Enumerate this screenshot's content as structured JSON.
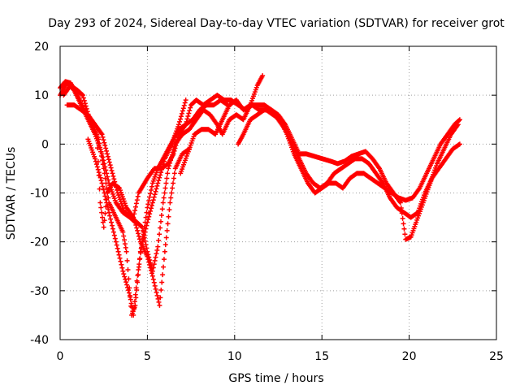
{
  "chart_data": {
    "type": "scatter",
    "title": "Day 293 of 2024, Sidereal Day-to-day VTEC variation (SDTVAR) for receiver grot",
    "xlabel": "GPS time / hours",
    "ylabel": "SDTVAR / TECUs",
    "xlim": [
      0,
      25
    ],
    "ylim": [
      -40,
      20
    ],
    "xticks": [
      0,
      5,
      10,
      15,
      20,
      25
    ],
    "yticks": [
      -40,
      -30,
      -20,
      -10,
      0,
      10,
      20
    ],
    "xtick_labels": [
      "0",
      "5",
      "10",
      "15",
      "20",
      "25"
    ],
    "ytick_labels": [
      "-40",
      "-30",
      "-20",
      "-10",
      "0",
      "10",
      "20"
    ],
    "grid": true,
    "marker": "plus",
    "color": "#ff0000",
    "series": [
      {
        "values": [
          [
            0.0,
            11.5
          ],
          [
            0.3,
            12.8
          ],
          [
            0.6,
            12.5
          ],
          [
            1.0,
            10
          ],
          [
            1.4,
            7
          ],
          [
            1.8,
            4
          ],
          [
            2.2,
            1
          ],
          [
            2.5,
            -5
          ],
          [
            2.8,
            -12
          ],
          [
            3.2,
            -15
          ],
          [
            3.6,
            -18
          ],
          [
            3.8,
            -22
          ],
          [
            4.1,
            -35
          ],
          [
            4.3,
            -33
          ],
          [
            4.6,
            -22
          ],
          [
            5.0,
            -16
          ],
          [
            5.3,
            -12
          ],
          [
            5.6,
            -8
          ],
          [
            6.0,
            -3
          ],
          [
            6.4,
            0
          ],
          [
            6.8,
            4
          ],
          [
            7.2,
            9
          ]
        ]
      },
      {
        "values": [
          [
            0.0,
            10
          ],
          [
            0.4,
            12.5
          ],
          [
            0.8,
            11
          ],
          [
            1.2,
            8
          ],
          [
            1.6,
            5
          ],
          [
            2.0,
            2
          ],
          [
            2.4,
            -2
          ],
          [
            2.8,
            -8
          ],
          [
            3.2,
            -12
          ],
          [
            3.6,
            -14
          ],
          [
            4.0,
            -15
          ],
          [
            4.3,
            -16
          ],
          [
            4.6,
            -20
          ],
          [
            5.0,
            -23
          ],
          [
            5.3,
            -27
          ],
          [
            5.7,
            -33
          ],
          [
            6.0,
            -22
          ],
          [
            6.3,
            -12
          ],
          [
            6.6,
            -5
          ],
          [
            7.0,
            -2
          ],
          [
            7.4,
            -1
          ]
        ]
      },
      {
        "values": [
          [
            0.2,
            10
          ],
          [
            0.6,
            12
          ],
          [
            1.0,
            11
          ],
          [
            1.3,
            10
          ],
          [
            1.7,
            5
          ],
          [
            2.1,
            2
          ],
          [
            2.3,
            -12
          ],
          [
            2.5,
            -17
          ],
          [
            2.7,
            -10
          ],
          [
            3.0,
            -8
          ],
          [
            3.4,
            -9
          ],
          [
            3.8,
            -13
          ],
          [
            4.2,
            -15
          ],
          [
            4.5,
            -10
          ],
          [
            5.0,
            -7
          ],
          [
            5.4,
            -5
          ],
          [
            5.8,
            -5
          ],
          [
            6.2,
            -4
          ],
          [
            6.5,
            -2
          ],
          [
            6.8,
            2
          ],
          [
            7.2,
            4
          ],
          [
            7.5,
            8
          ],
          [
            7.8,
            9
          ],
          [
            8.2,
            8
          ],
          [
            8.6,
            9
          ],
          [
            9.0,
            10
          ],
          [
            9.4,
            9
          ],
          [
            9.8,
            9
          ],
          [
            10.2,
            8
          ],
          [
            10.6,
            7
          ],
          [
            11.0,
            8
          ],
          [
            11.4,
            7
          ],
          [
            11.8,
            7
          ],
          [
            12.2,
            6
          ],
          [
            12.6,
            5
          ],
          [
            13.0,
            2
          ],
          [
            13.4,
            -2
          ],
          [
            13.8,
            -5
          ],
          [
            14.2,
            -8
          ],
          [
            14.6,
            -10
          ],
          [
            15.0,
            -9
          ],
          [
            15.4,
            -8
          ],
          [
            15.8,
            -8
          ],
          [
            16.2,
            -9
          ],
          [
            16.6,
            -7
          ],
          [
            17.0,
            -6
          ],
          [
            17.4,
            -6
          ],
          [
            17.8,
            -7
          ],
          [
            18.2,
            -8
          ],
          [
            18.6,
            -9
          ],
          [
            19.0,
            -10
          ],
          [
            19.4,
            -11
          ],
          [
            19.8,
            -11.5
          ],
          [
            20.2,
            -11
          ],
          [
            20.6,
            -9
          ],
          [
            21.0,
            -6
          ],
          [
            21.4,
            -3
          ],
          [
            21.8,
            0
          ],
          [
            22.2,
            2
          ],
          [
            22.6,
            4
          ],
          [
            22.9,
            5
          ]
        ]
      },
      {
        "values": [
          [
            0.4,
            8
          ],
          [
            0.8,
            8
          ],
          [
            1.2,
            7
          ],
          [
            1.6,
            6
          ],
          [
            2.0,
            4
          ],
          [
            2.4,
            2
          ],
          [
            2.7,
            -2
          ],
          [
            3.0,
            -6
          ],
          [
            3.3,
            -10
          ],
          [
            3.7,
            -14
          ],
          [
            4.1,
            -15
          ],
          [
            4.4,
            -16
          ],
          [
            4.7,
            -17
          ],
          [
            5.0,
            -22
          ],
          [
            5.3,
            -26
          ],
          [
            5.6,
            -21
          ],
          [
            5.9,
            -12
          ],
          [
            6.2,
            -5
          ],
          [
            6.6,
            0
          ],
          [
            7.0,
            2
          ],
          [
            7.4,
            3
          ],
          [
            7.8,
            5
          ],
          [
            8.2,
            7
          ],
          [
            8.6,
            6
          ],
          [
            9.0,
            4
          ],
          [
            9.3,
            2
          ],
          [
            9.7,
            5
          ],
          [
            10.1,
            6
          ],
          [
            10.5,
            5
          ],
          [
            10.9,
            8
          ],
          [
            11.3,
            12
          ],
          [
            11.6,
            14
          ]
        ]
      },
      {
        "values": [
          [
            6.9,
            -6
          ],
          [
            7.3,
            -2
          ],
          [
            7.7,
            2
          ],
          [
            8.1,
            3
          ],
          [
            8.5,
            3
          ],
          [
            8.9,
            2
          ],
          [
            9.3,
            5
          ],
          [
            9.7,
            8
          ],
          [
            10.1,
            9
          ],
          [
            10.5,
            7
          ],
          [
            10.9,
            8
          ],
          [
            11.3,
            8
          ],
          [
            11.7,
            8
          ],
          [
            12.1,
            7
          ],
          [
            12.5,
            5
          ],
          [
            12.9,
            3
          ],
          [
            13.3,
            0
          ],
          [
            13.7,
            -3
          ],
          [
            14.1,
            -6
          ],
          [
            14.5,
            -8
          ],
          [
            14.9,
            -9
          ],
          [
            15.3,
            -8
          ],
          [
            15.7,
            -6
          ],
          [
            16.1,
            -5
          ],
          [
            16.5,
            -4
          ],
          [
            16.9,
            -3
          ],
          [
            17.3,
            -3
          ],
          [
            17.7,
            -4
          ],
          [
            18.1,
            -6
          ],
          [
            18.5,
            -8
          ],
          [
            18.9,
            -11
          ],
          [
            19.3,
            -13
          ],
          [
            19.7,
            -14
          ],
          [
            20.1,
            -15
          ],
          [
            20.5,
            -14
          ],
          [
            20.9,
            -10
          ],
          [
            21.3,
            -7
          ],
          [
            21.7,
            -5
          ],
          [
            22.1,
            -3
          ],
          [
            22.5,
            -1
          ],
          [
            22.9,
            0
          ]
        ]
      },
      {
        "values": [
          [
            10.2,
            0
          ],
          [
            10.5,
            2
          ],
          [
            10.9,
            5
          ],
          [
            11.3,
            6
          ],
          [
            11.7,
            7
          ],
          [
            12.1,
            7
          ],
          [
            12.5,
            6
          ],
          [
            12.9,
            4
          ],
          [
            13.3,
            1
          ],
          [
            13.7,
            -2
          ],
          [
            14.1,
            -2
          ],
          [
            15.5,
            -3.5
          ],
          [
            15.9,
            -4
          ],
          [
            16.3,
            -3.5
          ],
          [
            16.7,
            -2.5
          ],
          [
            17.1,
            -2
          ],
          [
            17.5,
            -1.5
          ],
          [
            17.9,
            -3
          ],
          [
            18.3,
            -5
          ],
          [
            18.7,
            -8
          ],
          [
            19.1,
            -10
          ],
          [
            19.5,
            -12
          ],
          [
            19.8,
            -19.5
          ],
          [
            20.1,
            -19
          ],
          [
            20.4,
            -16
          ],
          [
            20.8,
            -12
          ],
          [
            21.2,
            -8
          ],
          [
            21.6,
            -4
          ],
          [
            22.0,
            -1
          ],
          [
            22.4,
            2
          ],
          [
            22.8,
            4
          ]
        ]
      },
      {
        "values": [
          [
            1.6,
            1
          ],
          [
            2.0,
            -3
          ],
          [
            2.4,
            -8
          ],
          [
            2.8,
            -14
          ],
          [
            3.2,
            -20
          ],
          [
            3.6,
            -26
          ],
          [
            4.0,
            -31
          ],
          [
            4.2,
            -35
          ],
          [
            4.4,
            -28
          ],
          [
            4.7,
            -20
          ],
          [
            5.0,
            -13
          ],
          [
            5.3,
            -8
          ],
          [
            5.6,
            -5
          ],
          [
            5.9,
            -3
          ],
          [
            6.2,
            -1
          ],
          [
            6.5,
            1
          ],
          [
            6.8,
            3
          ],
          [
            7.2,
            4
          ],
          [
            7.6,
            5
          ],
          [
            8.0,
            7
          ],
          [
            8.4,
            8
          ],
          [
            8.8,
            8
          ],
          [
            9.2,
            9
          ],
          [
            9.6,
            8
          ]
        ]
      }
    ]
  }
}
